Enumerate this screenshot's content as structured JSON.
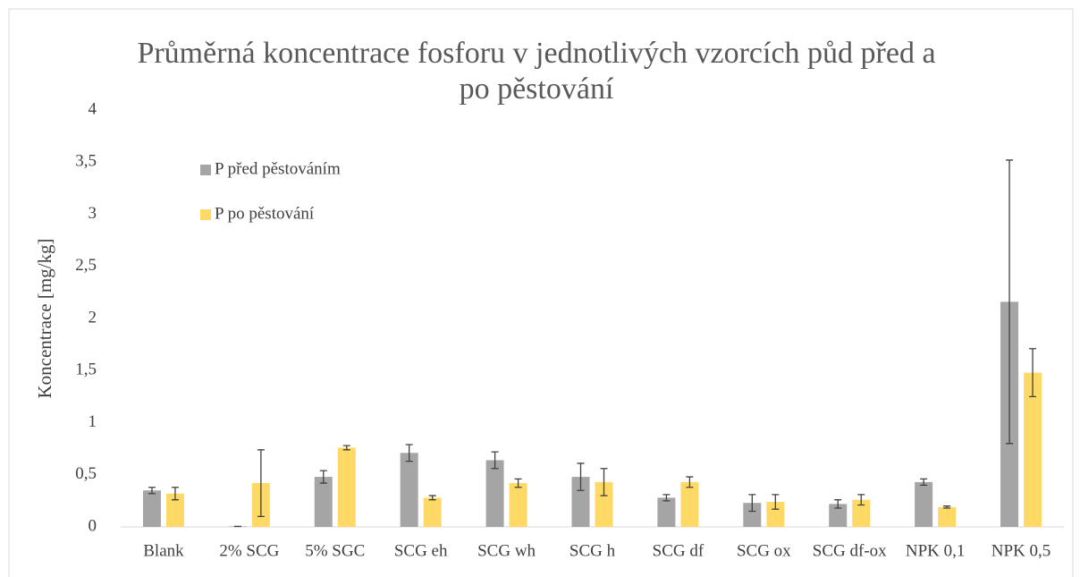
{
  "chart_data": {
    "type": "bar",
    "title": "Průměrná koncentrace fosforu v jednotlivých vzorcích půd před a po pěstování",
    "ylabel": "Koncentrace [mg/kg]",
    "categories": [
      "Blank",
      "2% SCG",
      "5% SGC",
      "SCG eh",
      "SCG wh",
      "SCG h",
      "SCG df",
      "SCG ox",
      "SCG df-ox",
      "NPK 0,1",
      "NPK 0,5"
    ],
    "series": [
      {
        "name": "P před pěstováním",
        "color": "#a5a5a5",
        "values": [
          0.35,
          0.005,
          0.48,
          0.71,
          0.64,
          0.48,
          0.28,
          0.23,
          0.22,
          0.43,
          2.16
        ],
        "errors": [
          0.03,
          0,
          0.06,
          0.08,
          0.08,
          0.13,
          0.03,
          0.08,
          0.04,
          0.03,
          1.36
        ]
      },
      {
        "name": "P po pěstování",
        "color": "#ffd966",
        "values": [
          0.32,
          0.42,
          0.76,
          0.28,
          0.42,
          0.43,
          0.43,
          0.24,
          0.26,
          0.19,
          1.48
        ],
        "errors": [
          0.06,
          0.32,
          0.02,
          0.02,
          0.04,
          0.13,
          0.05,
          0.07,
          0.05,
          0.01,
          0.23
        ]
      }
    ],
    "ylim": [
      0,
      4
    ],
    "yticks": [
      0,
      {
        "value": 0.5,
        "label": "0,5"
      },
      1,
      {
        "value": 1.5,
        "label": "1,5"
      },
      2,
      {
        "value": 2.5,
        "label": "2,5"
      },
      3,
      {
        "value": 3.5,
        "label": "3,5"
      },
      4
    ],
    "grid": false,
    "legend": "top-left"
  }
}
